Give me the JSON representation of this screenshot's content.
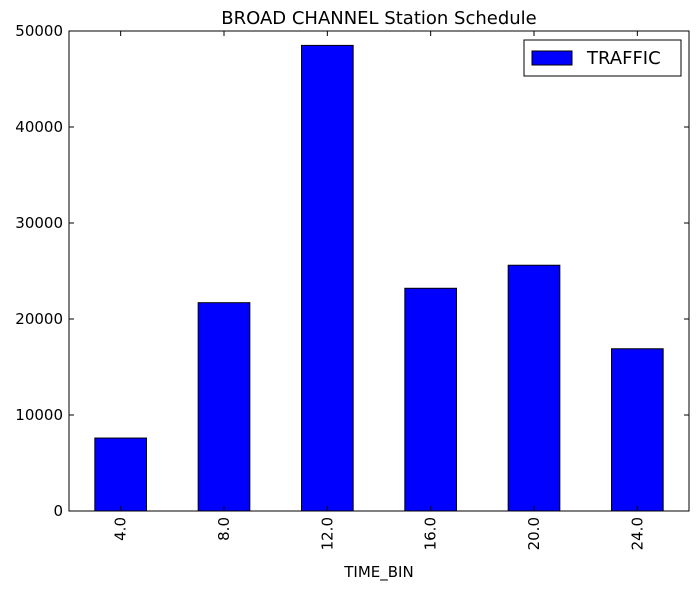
{
  "chart_data": {
    "type": "bar",
    "title": "BROAD CHANNEL Station Schedule",
    "xlabel": "TIME_BIN",
    "ylabel": "",
    "categories": [
      "4.0",
      "8.0",
      "12.0",
      "16.0",
      "20.0",
      "24.0"
    ],
    "series": [
      {
        "name": "TRAFFIC",
        "color": "#0000ff",
        "values": [
          7600,
          21700,
          48500,
          23200,
          25600,
          16900
        ]
      }
    ],
    "ylim": [
      0,
      50000
    ],
    "yticks": [
      "0",
      "10000",
      "20000",
      "30000",
      "40000",
      "50000"
    ],
    "grid": false,
    "legend_position": "top-right"
  }
}
